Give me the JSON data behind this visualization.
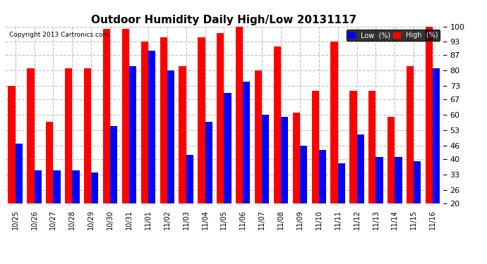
{
  "title": "Outdoor Humidity Daily High/Low 20131117",
  "copyright": "Copyright 2013 Cartronics.com",
  "labels": [
    "10/25",
    "10/26",
    "10/27",
    "10/28",
    "10/29",
    "10/30",
    "10/31",
    "11/01",
    "11/02",
    "11/03",
    "11/04",
    "11/05",
    "11/06",
    "11/07",
    "11/08",
    "11/09",
    "11/10",
    "11/11",
    "11/12",
    "11/13",
    "11/14",
    "11/15",
    "11/16"
  ],
  "high": [
    73,
    81,
    57,
    81,
    81,
    99,
    99,
    93,
    95,
    82,
    95,
    97,
    100,
    80,
    91,
    61,
    71,
    93,
    71,
    71,
    59,
    82,
    100
  ],
  "low": [
    47,
    35,
    35,
    35,
    34,
    55,
    82,
    89,
    80,
    42,
    57,
    70,
    75,
    60,
    59,
    46,
    44,
    38,
    51,
    41,
    41,
    39,
    81
  ],
  "high_color": "#ff0000",
  "low_color": "#0000ff",
  "bg_color": "#ffffff",
  "grid_color": "#c0c0c0",
  "ylim": [
    20,
    100
  ],
  "yticks": [
    20,
    26,
    33,
    40,
    46,
    53,
    60,
    67,
    73,
    80,
    87,
    93,
    100
  ],
  "bar_width": 0.38,
  "legend_label_low": "Low  (%)",
  "legend_label_high": "High  (%)"
}
